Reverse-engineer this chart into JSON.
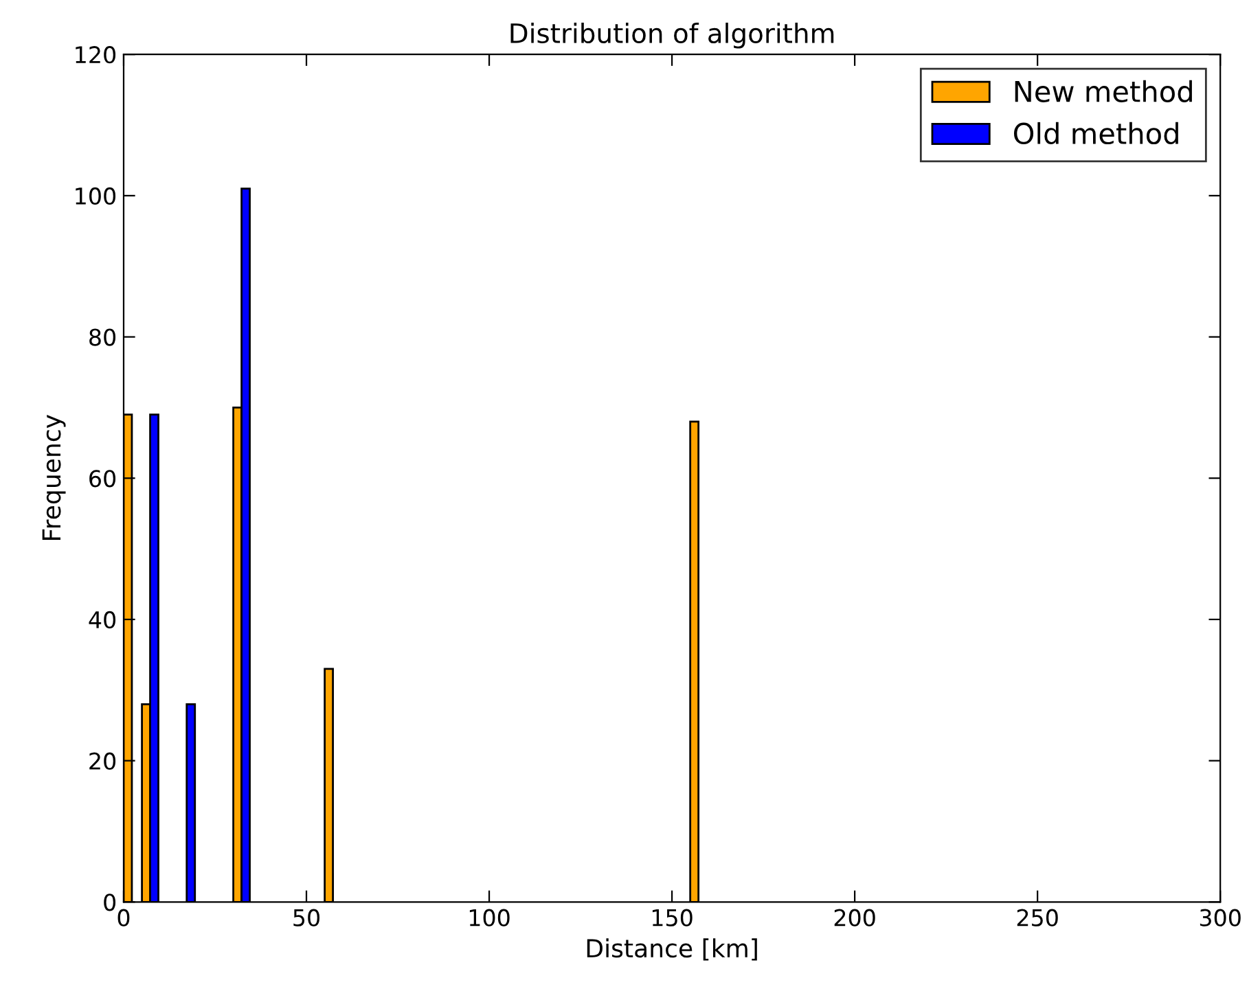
{
  "chart_data": {
    "type": "histogram",
    "title": "Distribution of algorithm",
    "xlabel": "Distance [km]",
    "ylabel": "Frequency",
    "bins": [
      0,
      5,
      10,
      15,
      20,
      25,
      30,
      35,
      40,
      45,
      50,
      55,
      60,
      65,
      70,
      75,
      80,
      85,
      90,
      95,
      100,
      105,
      110,
      115,
      120,
      125,
      130,
      135,
      140,
      145,
      150,
      155,
      160,
      165,
      170,
      175,
      180,
      185,
      190,
      195,
      200,
      205
    ],
    "series": [
      {
        "name": "New method",
        "color": "#ffa500",
        "values": [
          69,
          28,
          0,
          0,
          0,
          0,
          70,
          0,
          0,
          0,
          0,
          33,
          0,
          0,
          0,
          0,
          0,
          0,
          0,
          0,
          0,
          0,
          0,
          0,
          0,
          0,
          0,
          0,
          0,
          0,
          0,
          68,
          0,
          0,
          0,
          0,
          0,
          0,
          0,
          0,
          0
        ]
      },
      {
        "name": "Old method",
        "color": "#0000ff",
        "values": [
          0,
          69,
          0,
          28,
          0,
          0,
          101,
          0,
          0,
          0,
          0,
          0,
          0,
          0,
          0,
          0,
          0,
          0,
          0,
          0,
          0,
          0,
          0,
          0,
          0,
          0,
          0,
          0,
          0,
          0,
          0,
          0,
          0,
          0,
          0,
          0,
          0,
          0,
          0,
          0,
          0
        ]
      }
    ],
    "xlim": [
      0,
      300
    ],
    "xticks": [
      0,
      50,
      100,
      150,
      200,
      250,
      300
    ],
    "ylim": [
      0,
      120
    ],
    "yticks": [
      0,
      20,
      40,
      60,
      80,
      100,
      120
    ],
    "grid": false,
    "legend": "top right"
  }
}
